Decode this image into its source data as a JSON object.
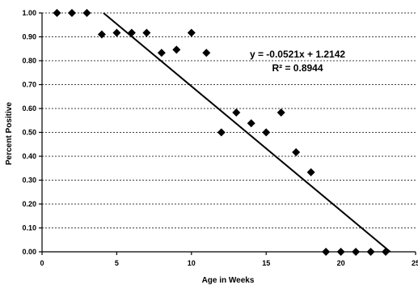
{
  "chart_data": {
    "type": "scatter",
    "xlabel": "Age in Weeks",
    "ylabel": "Percent Positive",
    "xlim": [
      0,
      25
    ],
    "ylim": [
      0,
      1.0
    ],
    "x_ticks": [
      "0",
      "5",
      "10",
      "15",
      "20",
      "25"
    ],
    "y_ticks": [
      "0.00",
      "0.10",
      "0.20",
      "0.30",
      "0.40",
      "0.50",
      "0.60",
      "0.70",
      "0.80",
      "0.90",
      "1.00"
    ],
    "grid": true,
    "series": [
      {
        "x": [
          1,
          2,
          3,
          4,
          5,
          6,
          7,
          8,
          9,
          10,
          11,
          12,
          13,
          14,
          15,
          16,
          17,
          18,
          19,
          20,
          21,
          22,
          23
        ],
        "y": [
          1.0,
          1.0,
          1.0,
          0.91,
          0.917,
          0.917,
          0.917,
          0.833,
          0.846,
          0.917,
          0.833,
          0.5,
          0.583,
          0.538,
          0.5,
          0.583,
          0.417,
          0.333,
          0.0,
          0.0,
          0.0,
          0.0,
          0.0
        ]
      }
    ],
    "trendline": {
      "slope": -0.0521,
      "intercept": 1.2142,
      "equation": "y = -0.0521x + 1.2142",
      "r2_label": "R² = 0.8944"
    }
  }
}
